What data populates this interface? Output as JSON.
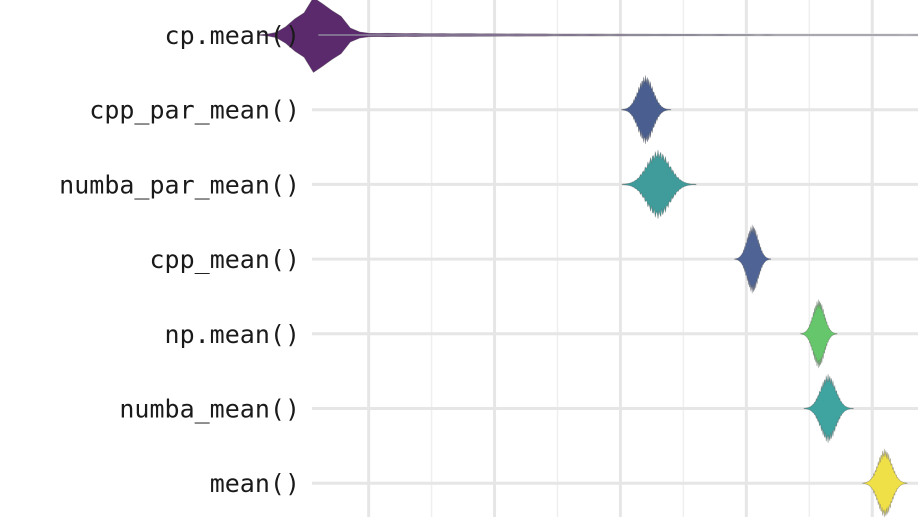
{
  "chart_data": {
    "type": "violin",
    "categories": [
      "cp.mean()",
      "cpp_par_mean()",
      "numba_par_mean()",
      "cpp_mean()",
      "np.mean()",
      "numba_mean()",
      "mean()"
    ],
    "colors": [
      "#5b2a6d",
      "#4a5f8f",
      "#3f9c9a",
      "#4f6394",
      "#66c66b",
      "#3fa3a0",
      "#f0e048"
    ],
    "series": [
      {
        "category": "cp.mean()",
        "center": 0.12,
        "spread": 0.03,
        "tail_max": 1.2,
        "outlier": 1.13,
        "color": "#5b2a6d"
      },
      {
        "category": "cpp_par_mean()",
        "center": 0.64,
        "spread": 0.012,
        "tail_max": 0.68,
        "color": "#4a5f8f"
      },
      {
        "category": "numba_par_mean()",
        "center": 0.66,
        "spread": 0.018,
        "tail_max": 0.72,
        "color": "#3f9c9a"
      },
      {
        "category": "cpp_mean()",
        "center": 0.81,
        "spread": 0.009,
        "tail_max": 0.83,
        "color": "#4f6394"
      },
      {
        "category": "np.mean()",
        "center": 0.915,
        "spread": 0.009,
        "tail_max": 0.93,
        "color": "#66c66b"
      },
      {
        "category": "numba_mean()",
        "center": 0.93,
        "spread": 0.012,
        "tail_max": 0.97,
        "color": "#3fa3a0"
      },
      {
        "category": "mean()",
        "center": 1.02,
        "spread": 0.011,
        "tail_max": 1.04,
        "color": "#f0e048"
      }
    ],
    "xlim": [
      0.11,
      1.06
    ],
    "x_major_grid": [
      0.2,
      0.4,
      0.6,
      0.8,
      1.0
    ],
    "x_minor_grid": [
      0.3,
      0.5,
      0.7,
      0.9
    ],
    "grid": true,
    "legend": "none",
    "title": "",
    "xlabel": "",
    "ylabel": ""
  }
}
